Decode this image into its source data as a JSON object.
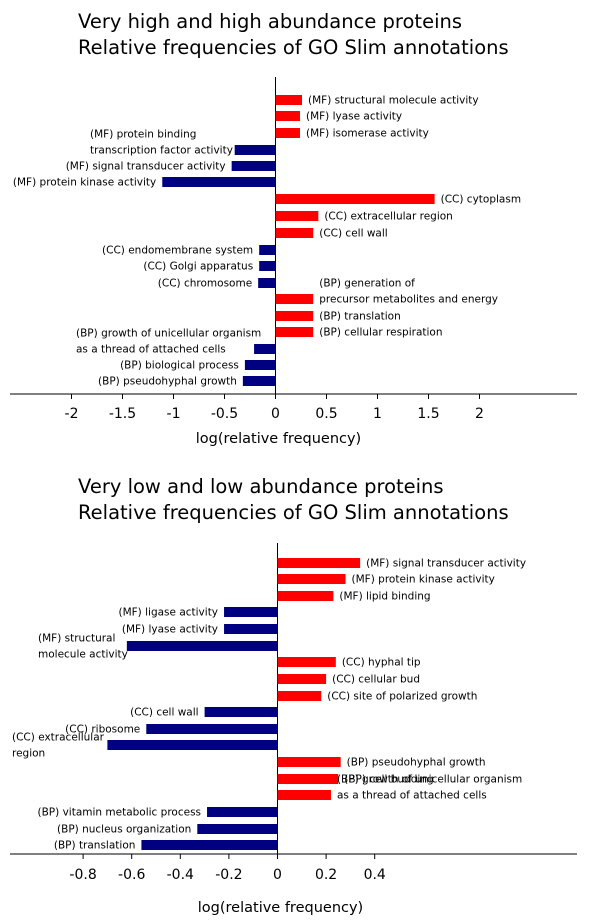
{
  "chart_data": [
    {
      "type": "bar",
      "orientation": "horizontal",
      "title": [
        "Very high and high abundance proteins",
        "Relative frequencies of GO Slim annotations"
      ],
      "xlabel": "log(relative frequency)",
      "xlim": [
        -2.3,
        2.9
      ],
      "xticks": [
        -2,
        -1.5,
        -1,
        -0.5,
        0,
        0.5,
        1,
        1.5,
        2
      ],
      "xtick_labels": [
        "-2",
        "-1.5",
        "-1",
        "-0.5",
        "0",
        "0.5",
        "1",
        "1.5",
        "2"
      ],
      "positive_color": "#ff0000",
      "negative_color": "#000080",
      "bars": [
        {
          "label": [
            "(MF) structural molecule activity"
          ],
          "value": 0.26
        },
        {
          "label": [
            "(MF) lyase activity"
          ],
          "value": 0.24
        },
        {
          "label": [
            "(MF) isomerase activity"
          ],
          "value": 0.24
        },
        {
          "label": [
            "(MF) protein binding",
            "transcription factor activity"
          ],
          "value": -0.4
        },
        {
          "label": [
            "(MF) signal transducer activity"
          ],
          "value": -0.43
        },
        {
          "label": [
            "(MF) protein kinase activity"
          ],
          "value": -1.11
        },
        {
          "label": [
            "(CC) cytoplasm"
          ],
          "value": 1.56
        },
        {
          "label": [
            "(CC) extracellular region"
          ],
          "value": 0.42
        },
        {
          "label": [
            "(CC) cell wall"
          ],
          "value": 0.37
        },
        {
          "label": [
            "(CC) endomembrane system"
          ],
          "value": -0.16
        },
        {
          "label": [
            "(CC) Golgi apparatus"
          ],
          "value": -0.16
        },
        {
          "label": [
            "(CC) chromosome"
          ],
          "value": -0.17
        },
        {
          "label": [
            "(BP) generation of",
            "precursor metabolites and energy"
          ],
          "value": 0.37
        },
        {
          "label": [
            "(BP) translation"
          ],
          "value": 0.37
        },
        {
          "label": [
            "(BP) cellular respiration"
          ],
          "value": 0.37
        },
        {
          "label": [
            "(BP) growth of unicellular organism",
            "as a thread of attached cells"
          ],
          "value": -0.21
        },
        {
          "label": [
            "(BP) biological process"
          ],
          "value": -0.3
        },
        {
          "label": [
            "(BP) pseudohyphal growth"
          ],
          "value": -0.32
        }
      ]
    },
    {
      "type": "bar",
      "orientation": "horizontal",
      "title": [
        "Very low and low abundance proteins",
        "Relative frequencies of GO Slim annotations"
      ],
      "xlabel": "log(relative frequency)",
      "xlim": [
        -0.97,
        1.1
      ],
      "xticks": [
        -0.8,
        -0.6,
        -0.4,
        -0.2,
        0,
        0.2,
        0.4
      ],
      "xtick_labels": [
        "-0.8",
        "-0.6",
        "-0.4",
        "-0.2",
        "0",
        "0.2",
        "0.4"
      ],
      "positive_color": "#ff0000",
      "negative_color": "#000080",
      "bars": [
        {
          "label": [
            "(MF) signal transducer activity"
          ],
          "value": 0.34
        },
        {
          "label": [
            "(MF) protein kinase activity"
          ],
          "value": 0.28
        },
        {
          "label": [
            "(MF) lipid binding"
          ],
          "value": 0.23
        },
        {
          "label": [
            "(MF) ligase activity"
          ],
          "value": -0.22
        },
        {
          "label": [
            "(MF) lyase activity"
          ],
          "value": -0.22
        },
        {
          "label": [
            "(MF) structural",
            "molecule activity"
          ],
          "value": -0.62
        },
        {
          "label": [
            "(CC) hyphal tip"
          ],
          "value": 0.24
        },
        {
          "label": [
            "(CC) cellular bud"
          ],
          "value": 0.2
        },
        {
          "label": [
            "(CC) site of polarized growth"
          ],
          "value": 0.18
        },
        {
          "label": [
            "(CC) cell wall"
          ],
          "value": -0.3
        },
        {
          "label": [
            "(CC) ribosome"
          ],
          "value": -0.54
        },
        {
          "label": [
            "(CC) extracellular",
            "region"
          ],
          "value": -0.7
        },
        {
          "label": [
            "(BP) pseudohyphal growth"
          ],
          "value": 0.26
        },
        {
          "label": [
            "(BP) cell budding"
          ],
          "value": 0.25
        },
        {
          "label": [
            "(BP) growth of unicellular organism",
            "as a thread of attached cells"
          ],
          "value": 0.22
        },
        {
          "label": [
            "(BP) vitamin metabolic process"
          ],
          "value": -0.29
        },
        {
          "label": [
            "(BP) nucleus organization"
          ],
          "value": -0.33
        },
        {
          "label": [
            "(BP) translation"
          ],
          "value": -0.56
        }
      ]
    }
  ]
}
